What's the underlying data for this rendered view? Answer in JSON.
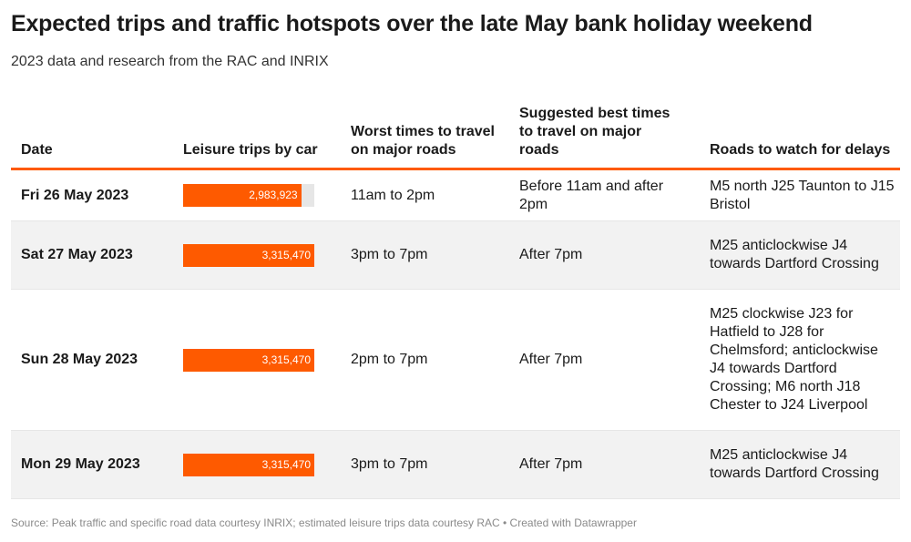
{
  "title": "Expected trips and traffic hotspots over the late May bank holiday weekend",
  "subtitle": "2023 data and research from the RAC and INRIX",
  "columns": {
    "date": "Date",
    "trips": "Leisure trips by car",
    "worst": "Worst times to travel on major roads",
    "best": "Suggested best times to travel on major roads",
    "roads": "Roads to watch for delays"
  },
  "rows": [
    {
      "date": "Fri 26 May 2023",
      "trips_label": "2,983,923",
      "worst": "11am to 2pm",
      "best": "Before 11am and after 2pm",
      "roads": "M5 north J25 Taunton to J15 Bristol"
    },
    {
      "date": "Sat 27 May 2023",
      "trips_label": "3,315,470",
      "worst": "3pm to 7pm",
      "best": "After 7pm",
      "roads": "M25 anticlockwise J4 towards Dartford Crossing"
    },
    {
      "date": "Sun 28 May 2023",
      "trips_label": "3,315,470",
      "worst": "2pm to 7pm",
      "best": "After 7pm",
      "roads": "M25 clockwise J23 for Hatfield to J28 for Chelmsford; anticlockwise J4 towards Dartford Crossing; M6 north J18 Chester to J24 Liverpool"
    },
    {
      "date": "Mon 29 May 2023",
      "trips_label": "3,315,470",
      "worst": "3pm to 7pm",
      "best": "After 7pm",
      "roads": "M25 anticlockwise J4 towards Dartford Crossing"
    }
  ],
  "chart_data": {
    "type": "table",
    "columns": [
      "Date",
      "Leisure trips by car",
      "Worst times to travel on major roads",
      "Suggested best times to travel on major roads",
      "Roads to watch for delays"
    ],
    "bar_column": "Leisure trips by car",
    "bar_max": 3315470,
    "bar_color": "#fe5a00",
    "categories": [
      "Fri 26 May 2023",
      "Sat 27 May 2023",
      "Sun 28 May 2023",
      "Mon 29 May 2023"
    ],
    "values": [
      2983923,
      3315470,
      3315470,
      3315470
    ]
  },
  "colors": {
    "accent": "#fe5a00",
    "row_shade": "#f2f2f2",
    "bar_track": "#e6e6e6"
  },
  "source": "Source: Peak traffic and specific road data courtesy INRIX; estimated leisure trips data courtesy RAC • Created with Datawrapper"
}
